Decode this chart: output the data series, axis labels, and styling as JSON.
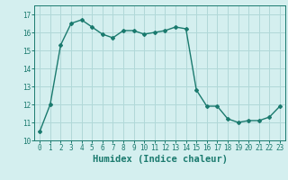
{
  "x": [
    0,
    1,
    2,
    3,
    4,
    5,
    6,
    7,
    8,
    9,
    10,
    11,
    12,
    13,
    14,
    15,
    16,
    17,
    18,
    19,
    20,
    21,
    22,
    23
  ],
  "y": [
    10.5,
    12.0,
    15.3,
    16.5,
    16.7,
    16.3,
    15.9,
    15.7,
    16.1,
    16.1,
    15.9,
    16.0,
    16.1,
    16.3,
    16.2,
    12.8,
    11.9,
    11.9,
    11.2,
    11.0,
    11.1,
    11.1,
    11.3,
    11.9
  ],
  "xlabel": "Humidex (Indice chaleur)",
  "ylim": [
    10,
    17.5
  ],
  "xlim": [
    -0.5,
    23.5
  ],
  "yticks": [
    10,
    11,
    12,
    13,
    14,
    15,
    16,
    17
  ],
  "xticks": [
    0,
    1,
    2,
    3,
    4,
    5,
    6,
    7,
    8,
    9,
    10,
    11,
    12,
    13,
    14,
    15,
    16,
    17,
    18,
    19,
    20,
    21,
    22,
    23
  ],
  "line_color": "#1a7a6e",
  "bg_color": "#d4efef",
  "grid_color": "#b0d8d8",
  "marker": "D",
  "marker_size": 2,
  "line_width": 1.0,
  "xlabel_fontsize": 7.5,
  "tick_fontsize": 5.5
}
